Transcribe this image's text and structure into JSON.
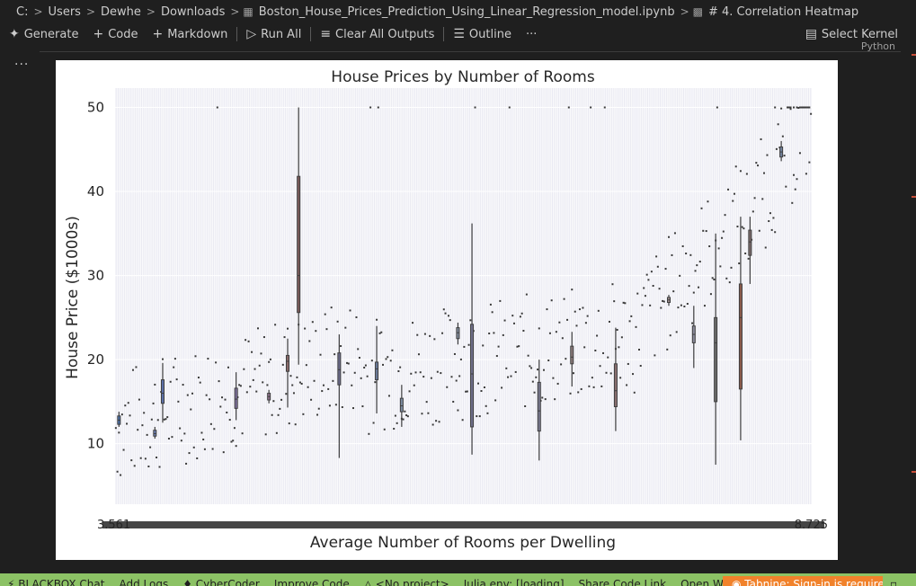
{
  "breadcrumb": {
    "segments": [
      "C:",
      "Users",
      "Dewhe",
      "Downloads",
      "Boston_House_Prices_Prediction_Using_Linear_Regression_model.ipynb",
      "# 4. Correlation Heatmap"
    ]
  },
  "toolbar": {
    "generate": "Generate",
    "code": "Code",
    "markdown": "Markdown",
    "run_all": "Run All",
    "clear_outputs": "Clear All Outputs",
    "outline": "Outline",
    "more": "···",
    "select_kernel": "Select Kernel"
  },
  "kernel_language": "Python",
  "cell_more": "···",
  "chart_data": {
    "type": "box",
    "title": "House Prices by Number of Rooms",
    "xlabel": "Average Number of Rooms per Dwelling",
    "ylabel": "House Price ($1000s)",
    "ylim": [
      2.8,
      52.3
    ],
    "yticks": [
      10,
      20,
      30,
      40,
      50
    ],
    "category_count": 446,
    "x_tick_labels": [
      "3.561",
      "8.725"
    ],
    "grid": true,
    "boxes": [
      {
        "pos": 2,
        "q1": 12.3,
        "median": 12.8,
        "q3": 13.3,
        "lo": 12.0,
        "hi": 13.8,
        "color": "#4a6fa5"
      },
      {
        "pos": 25,
        "q1": 10.9,
        "median": 11.2,
        "q3": 11.6,
        "lo": 10.6,
        "hi": 12.0,
        "color": "#6b7fb5"
      },
      {
        "pos": 30,
        "q1": 14.8,
        "median": 16.0,
        "q3": 17.6,
        "lo": 12.5,
        "hi": 19.6,
        "color": "#5b6fa8"
      },
      {
        "pos": 77,
        "q1": 14.2,
        "median": 15.3,
        "q3": 16.6,
        "lo": 12.8,
        "hi": 18.5,
        "color": "#7c6f9a"
      },
      {
        "pos": 98,
        "q1": 15.2,
        "median": 15.6,
        "q3": 16.0,
        "lo": 14.8,
        "hi": 16.4,
        "color": "#8c6f8a"
      },
      {
        "pos": 110,
        "q1": 18.6,
        "median": 19.8,
        "q3": 20.5,
        "lo": 14.3,
        "hi": 22.5,
        "color": "#8a6a6a"
      },
      {
        "pos": 117,
        "q1": 25.6,
        "median": 30.0,
        "q3": 41.8,
        "lo": 19.4,
        "hi": 50.0,
        "color": "#7a5a5a"
      },
      {
        "pos": 143,
        "q1": 17.0,
        "median": 18.8,
        "q3": 20.8,
        "lo": 8.3,
        "hi": 23.0,
        "color": "#6a6a8a"
      },
      {
        "pos": 167,
        "q1": 17.6,
        "median": 18.9,
        "q3": 19.7,
        "lo": 13.6,
        "hi": 24.0,
        "color": "#6a7a9a"
      },
      {
        "pos": 183,
        "q1": 13.8,
        "median": 14.5,
        "q3": 15.4,
        "lo": 12.0,
        "hi": 17.0,
        "color": "#7a8aa0"
      },
      {
        "pos": 219,
        "q1": 22.5,
        "median": 23.2,
        "q3": 23.8,
        "lo": 21.8,
        "hi": 24.4,
        "color": "#7f8a9a"
      },
      {
        "pos": 228,
        "q1": 12.0,
        "median": 18.3,
        "q3": 24.2,
        "lo": 8.7,
        "hi": 36.2,
        "color": "#6f6f8a"
      },
      {
        "pos": 271,
        "q1": 11.5,
        "median": 13.9,
        "q3": 17.3,
        "lo": 8.0,
        "hi": 20.0,
        "color": "#7a7a8f"
      },
      {
        "pos": 292,
        "q1": 19.5,
        "median": 20.3,
        "q3": 21.6,
        "lo": 16.8,
        "hi": 23.3,
        "color": "#8a7a7a"
      },
      {
        "pos": 320,
        "q1": 14.4,
        "median": 16.3,
        "q3": 19.5,
        "lo": 11.5,
        "hi": 23.8,
        "color": "#8a6f6f"
      },
      {
        "pos": 354,
        "q1": 26.8,
        "median": 27.1,
        "q3": 27.4,
        "lo": 26.4,
        "hi": 27.7,
        "color": "#9a8a8a"
      },
      {
        "pos": 370,
        "q1": 22.0,
        "median": 23.0,
        "q3": 24.0,
        "lo": 19.0,
        "hi": 26.4,
        "color": "#8a8a9a"
      },
      {
        "pos": 384,
        "q1": 15.0,
        "median": 22.0,
        "q3": 25.0,
        "lo": 7.5,
        "hi": 35.0,
        "color": "#6a6a6a"
      },
      {
        "pos": 400,
        "q1": 16.5,
        "median": 25.0,
        "q3": 29.0,
        "lo": 10.4,
        "hi": 37.0,
        "color": "#8a5a4a"
      },
      {
        "pos": 406,
        "q1": 32.4,
        "median": 34.0,
        "q3": 35.4,
        "lo": 29.0,
        "hi": 37.0,
        "color": "#7a6a6a"
      },
      {
        "pos": 426,
        "q1": 44.1,
        "median": 44.7,
        "q3": 45.3,
        "lo": 43.6,
        "hi": 46.0,
        "color": "#6f7f9a"
      }
    ]
  },
  "status_bar": {
    "blackbox": "BLACKBOX Chat",
    "add_logs": "Add Logs",
    "cybercoder": "CyberCoder",
    "improve_code": "Improve Code",
    "no_project": "<No project>",
    "julia": "Julia env: [loading]",
    "share": "Share Code Link",
    "open_website": "Open Website",
    "tabnine": "Tabnine: Sign-in is required"
  }
}
